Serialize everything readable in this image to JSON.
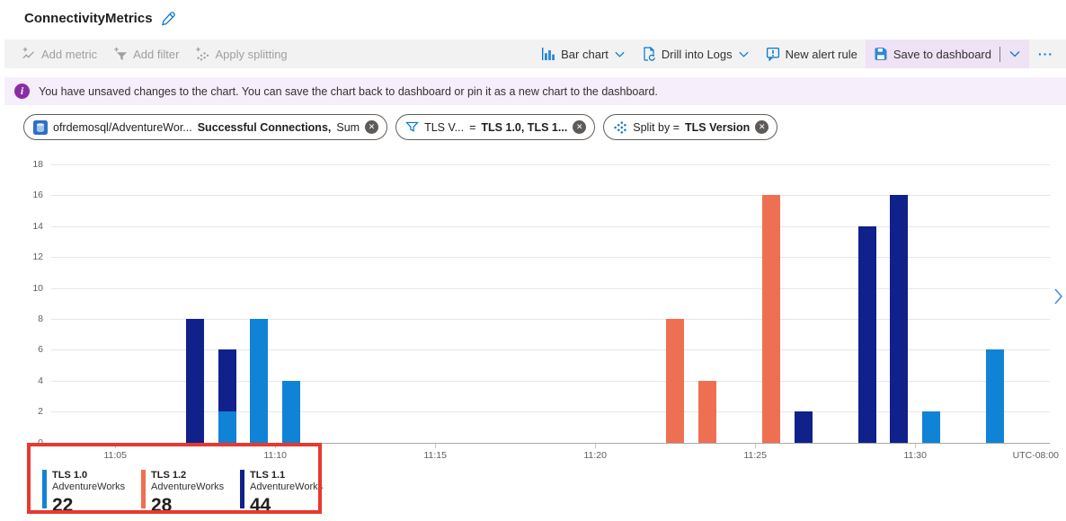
{
  "page": {
    "title": "ConnectivityMetrics"
  },
  "toolbar": {
    "add_metric": "Add metric",
    "add_filter": "Add filter",
    "apply_splitting": "Apply splitting",
    "bar_chart": "Bar chart",
    "drill_into_logs": "Drill into Logs",
    "new_alert_rule": "New alert rule",
    "save_to_dashboard": "Save to dashboard",
    "more": "···"
  },
  "banner": {
    "text": "You have unsaved changes to the chart. You can save the chart back to dashboard or pin it as a new chart to the dashboard."
  },
  "pills": {
    "metric": {
      "scope": "ofrdemosql/AdventureWor...",
      "metric": "Successful Connections,",
      "aggregation": "Sum"
    },
    "filter": {
      "property": "TLS V...",
      "operator": "=",
      "values": "TLS 1.0, TLS 1..."
    },
    "split": {
      "label": "Split by =",
      "value": "TLS Version"
    }
  },
  "chart_data": {
    "type": "bar",
    "stacked": true,
    "metric": "Successful Connections (Sum)",
    "split_by": "TLS Version",
    "time_grain_minutes": 1,
    "ylim": [
      0,
      18
    ],
    "y_ticks": [
      18,
      16,
      14,
      12,
      10,
      8,
      6,
      4,
      2,
      0
    ],
    "x_ticks": [
      "11:05",
      "11:10",
      "11:15",
      "11:20",
      "11:25",
      "11:30"
    ],
    "x_end_label": "UTC-08:00",
    "grid": true,
    "legend_position": "bottom-left",
    "series": [
      {
        "name": "TLS 1.0",
        "resource": "AdventureWorks",
        "total": 22,
        "color": "#1083d6"
      },
      {
        "name": "TLS 1.2",
        "resource": "AdventureWorks",
        "total": 28,
        "color": "#ee7052"
      },
      {
        "name": "TLS 1.1",
        "resource": "AdventureWorks",
        "total": 44,
        "color": "#10218b"
      }
    ],
    "bars": [
      {
        "time": "11:07",
        "segments": [
          {
            "series": "TLS 1.1",
            "value": 8
          }
        ]
      },
      {
        "time": "11:08",
        "segments": [
          {
            "series": "TLS 1.0",
            "value": 2
          },
          {
            "series": "TLS 1.1",
            "value": 4
          }
        ]
      },
      {
        "time": "11:09",
        "segments": [
          {
            "series": "TLS 1.0",
            "value": 8
          }
        ]
      },
      {
        "time": "11:10",
        "segments": [
          {
            "series": "TLS 1.0",
            "value": 4
          }
        ]
      },
      {
        "time": "11:22",
        "segments": [
          {
            "series": "TLS 1.2",
            "value": 8
          }
        ]
      },
      {
        "time": "11:23",
        "segments": [
          {
            "series": "TLS 1.2",
            "value": 4
          }
        ]
      },
      {
        "time": "11:25",
        "segments": [
          {
            "series": "TLS 1.2",
            "value": 16
          }
        ]
      },
      {
        "time": "11:26",
        "segments": [
          {
            "series": "TLS 1.1",
            "value": 2
          }
        ]
      },
      {
        "time": "11:28",
        "segments": [
          {
            "series": "TLS 1.1",
            "value": 14
          }
        ]
      },
      {
        "time": "11:29",
        "segments": [
          {
            "series": "TLS 1.1",
            "value": 16
          }
        ]
      },
      {
        "time": "11:30",
        "segments": [
          {
            "series": "TLS 1.0",
            "value": 2
          }
        ]
      },
      {
        "time": "11:32",
        "segments": [
          {
            "series": "TLS 1.0",
            "value": 6
          }
        ]
      }
    ]
  },
  "colors": {
    "accent": "#0078d4",
    "banner_bg": "#f7eefb",
    "banner_icon": "#8a2da2",
    "save_highlight": "#efe2f5",
    "annotation": "#e8382f"
  }
}
